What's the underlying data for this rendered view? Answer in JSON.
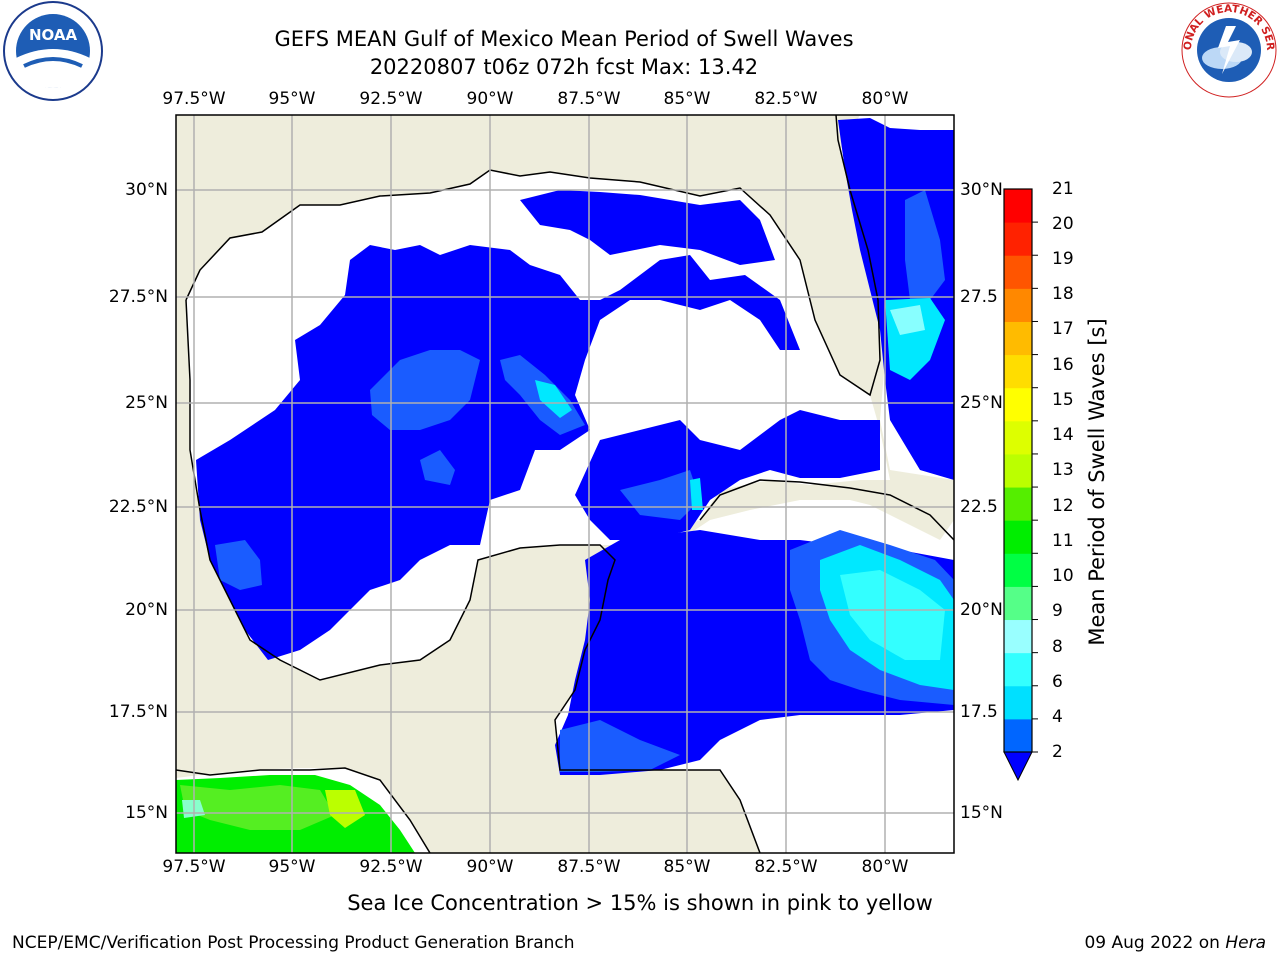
{
  "header": {
    "title": "GEFS MEAN Gulf of Mexico Mean Period of Swell Waves",
    "subtitle": "20220807 t06z 072h fcst   Max: 13.42"
  },
  "logos": {
    "noaa": "NOAA",
    "nws_text": "NATIONAL WEATHER SERVICE"
  },
  "map": {
    "lon_labels": [
      "97.5°W",
      "95°W",
      "92.5°W",
      "90°W",
      "87.5°W",
      "85°W",
      "82.5°W",
      "80°W"
    ],
    "lat_labels_left": [
      "30°N",
      "27.5°N",
      "25°N",
      "22.5°N",
      "20°N",
      "17.5°N",
      "15°N"
    ],
    "lat_labels_right": [
      "30°N",
      "27.5",
      "25°N",
      "22.5",
      "20°N",
      "17.5",
      "15°N"
    ],
    "colors": {
      "land": "#eeeddc",
      "water_none": "#ffffff",
      "grid": "#b0b0b0"
    }
  },
  "colorbar": {
    "label": "Mean Period of Swell Waves [s]",
    "ticks": [
      "2",
      "4",
      "6",
      "8",
      "9",
      "10",
      "11",
      "12",
      "13",
      "14",
      "15",
      "16",
      "17",
      "18",
      "19",
      "20",
      "21"
    ],
    "colors": [
      "#0000ff",
      "#0066ff",
      "#00e0ff",
      "#33ffff",
      "#99ffff",
      "#55ff88",
      "#00ff44",
      "#00ee00",
      "#55ee00",
      "#bbff00",
      "#ddff00",
      "#ffff00",
      "#ffdd00",
      "#ffbb00",
      "#ff8800",
      "#ff5500",
      "#ff2200",
      "#ff0000"
    ]
  },
  "notes": {
    "ice": "Sea Ice Concentration > 15% is shown in pink to yellow"
  },
  "footer": {
    "left": "NCEP/EMC/Verification Post Processing Product Generation Branch",
    "date": "09 Aug 2022 on ",
    "machine": "Hera"
  }
}
